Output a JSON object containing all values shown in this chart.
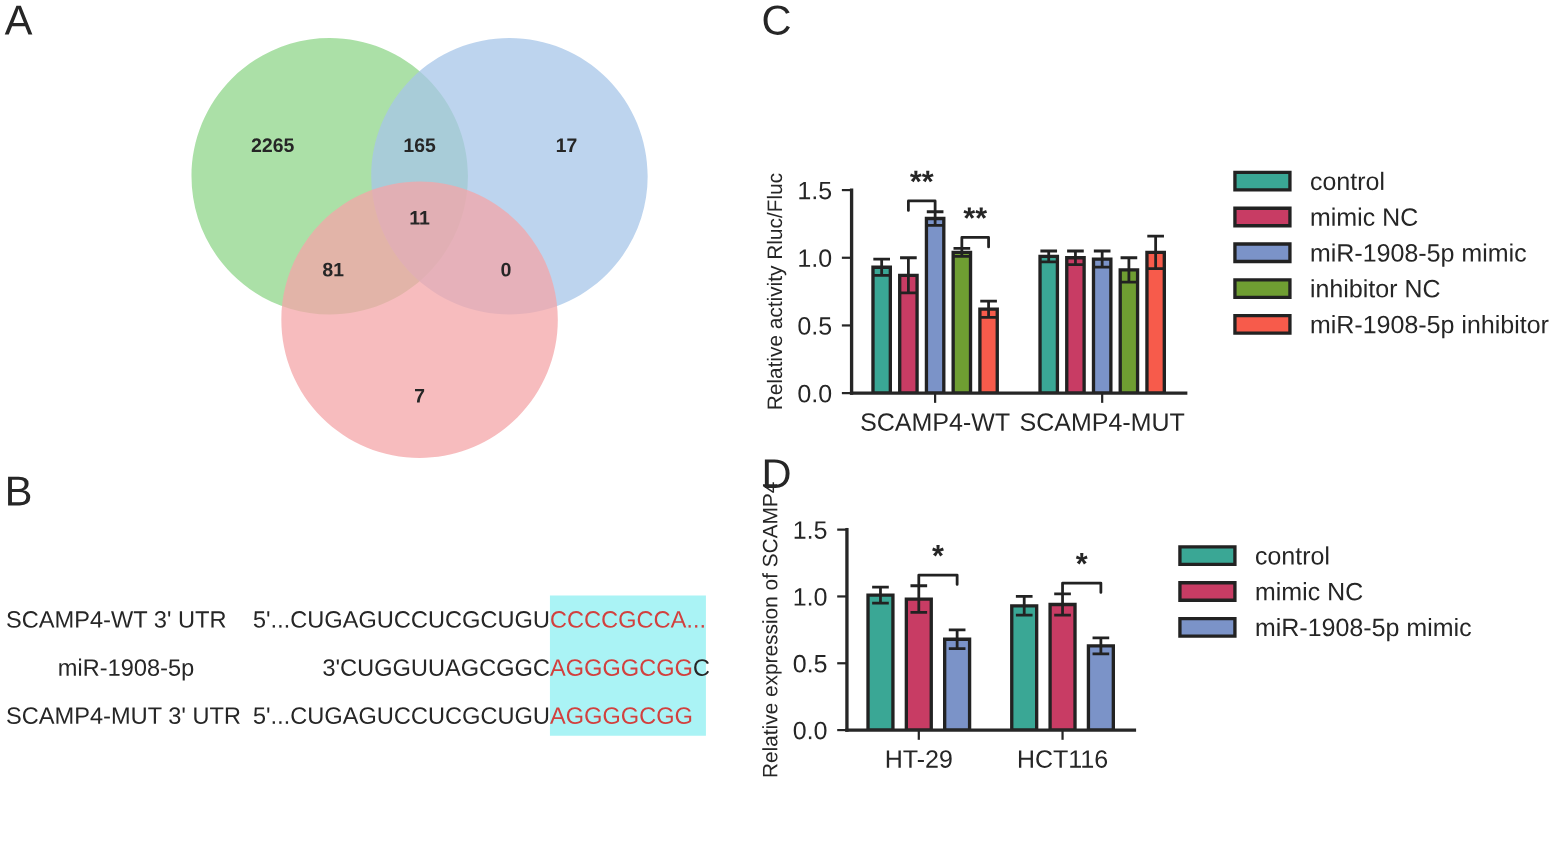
{
  "chart_data": [
    {
      "type": "other",
      "title": "A",
      "values": [
        2265,
        165,
        17,
        11,
        81,
        0,
        7
      ],
      "data_labels": true
    },
    {
      "type": "other",
      "title": "B",
      "annotations": [
        "SCAMP4-WT 3' UTR",
        "5'...CUGAGUCCUCGCUGU",
        "CCCCGCCA...",
        "miR-1908-5p",
        "3'CUGGUUAGCGGC",
        "AGGGGCGG",
        "C",
        "SCAMP4-MUT 3' UTR",
        "5'...CUGAGUCCUCGCUGU",
        "AGGGGCGG"
      ]
    },
    {
      "type": "bar",
      "title": "C",
      "ylabel": "Relative activity Rluc/Fluc",
      "categories": [
        "SCAMP4-WT",
        "SCAMP4-MUT"
      ],
      "ylim": [
        0,
        1.5
      ],
      "yticks": [
        {
          "value": 0,
          "label": "0.0"
        },
        {
          "value": 0.5,
          "label": "0.5"
        },
        {
          "value": 1,
          "label": "1.0"
        },
        {
          "value": 1.5,
          "label": "1.5"
        }
      ],
      "legend": "right",
      "annotations": [
        "**",
        "**"
      ],
      "series": [
        {
          "name": "control",
          "color": "#3aa795",
          "values": [
            0.93,
            1.01
          ],
          "errors": [
            0.06,
            0.04
          ]
        },
        {
          "name": "mimic NC",
          "color": "#c83c64",
          "values": [
            0.87,
            1.0
          ],
          "errors": [
            0.13,
            0.05
          ]
        },
        {
          "name": "miR-1908-5p mimic",
          "color": "#7b93c8",
          "values": [
            1.29,
            0.99
          ],
          "errors": [
            0.05,
            0.06
          ]
        },
        {
          "name": "inhibitor NC",
          "color": "#6f9e32",
          "values": [
            1.04,
            0.91
          ],
          "errors": [
            0.03,
            0.09
          ]
        },
        {
          "name": "miR-1908-5p inhibitor",
          "color": "#f75b4b",
          "values": [
            0.62,
            1.04
          ],
          "errors": [
            0.06,
            0.12
          ]
        }
      ]
    },
    {
      "type": "bar",
      "title": "D",
      "ylabel": "Relative expression of SCAMP4",
      "categories": [
        "HT-29",
        "HCT116"
      ],
      "ylim": [
        0,
        1.5
      ],
      "yticks": [
        {
          "value": 0,
          "label": "0.0"
        },
        {
          "value": 0.5,
          "label": "0.5"
        },
        {
          "value": 1,
          "label": "1.0"
        },
        {
          "value": 1.5,
          "label": "1.5"
        }
      ],
      "legend": "right",
      "annotations": [
        "*",
        "*"
      ],
      "series": [
        {
          "name": "control",
          "color": "#3aa795",
          "values": [
            1.01,
            0.93
          ],
          "errors": [
            0.06,
            0.07
          ]
        },
        {
          "name": "mimic NC",
          "color": "#c83c64",
          "values": [
            0.98,
            0.94
          ],
          "errors": [
            0.1,
            0.08
          ]
        },
        {
          "name": "miR-1908-5p mimic",
          "color": "#7b93c8",
          "values": [
            0.68,
            0.63
          ],
          "errors": [
            0.07,
            0.06
          ]
        }
      ]
    }
  ]
}
